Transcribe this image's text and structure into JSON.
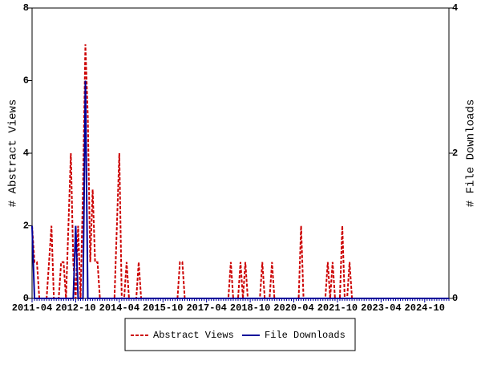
{
  "chart_data": {
    "type": "line",
    "categories": [
      "2011-04",
      null,
      null,
      null,
      null,
      null,
      null,
      null,
      null,
      null,
      null,
      null,
      null,
      null,
      null,
      null,
      null,
      null,
      "2012-10",
      null,
      null,
      null,
      null,
      null,
      null,
      null,
      null,
      null,
      null,
      null,
      null,
      null,
      null,
      null,
      null,
      null,
      "2014-04",
      null,
      null,
      null,
      null,
      null,
      null,
      null,
      null,
      null,
      null,
      null,
      null,
      null,
      null,
      null,
      null,
      null,
      "2015-10",
      null,
      null,
      null,
      null,
      null,
      null,
      null,
      null,
      null,
      null,
      null,
      null,
      null,
      null,
      null,
      null,
      null,
      "2017-04",
      null,
      null,
      null,
      null,
      null,
      null,
      null,
      null,
      null,
      null,
      null,
      null,
      null,
      null,
      null,
      null,
      null,
      "2018-10",
      null,
      null,
      null,
      null,
      null,
      null,
      null,
      null,
      null,
      null,
      null,
      null,
      null,
      null,
      null,
      null,
      null,
      "2020-04",
      null,
      null,
      null,
      null,
      null,
      null,
      null,
      null,
      null,
      null,
      null,
      null,
      null,
      null,
      null,
      null,
      null,
      "2021-10",
      null,
      null,
      null,
      null,
      null,
      null,
      null,
      null,
      null,
      null,
      null,
      null,
      null,
      null,
      null,
      null,
      null,
      "2023-04",
      null,
      null,
      null,
      null,
      null,
      null,
      null,
      null,
      null,
      null,
      null,
      null,
      null,
      null,
      null,
      null,
      null,
      "2024-10",
      null,
      null,
      null,
      null,
      null,
      null,
      null,
      null,
      null,
      null
    ],
    "series": [
      {
        "name": "Abstract Views",
        "color": "#cc0000",
        "dashed": true,
        "values": [
          2,
          1,
          1,
          0,
          0,
          0,
          0,
          1,
          2,
          0,
          0,
          0,
          1,
          1,
          0,
          2,
          4,
          1,
          0,
          2,
          0,
          3,
          7,
          5,
          1,
          3,
          1,
          1,
          0,
          0,
          0,
          0,
          0,
          0,
          0,
          2,
          4,
          0,
          0,
          1,
          0,
          0,
          0,
          0,
          1,
          0,
          0,
          0,
          0,
          0,
          0,
          0,
          0,
          0,
          0,
          0,
          0,
          0,
          0,
          0,
          0,
          1,
          1,
          0,
          0,
          0,
          0,
          0,
          0,
          0,
          0,
          0,
          0,
          0,
          0,
          0,
          0,
          0,
          0,
          0,
          0,
          0,
          1,
          0,
          0,
          0,
          1,
          0,
          1,
          0,
          0,
          0,
          0,
          0,
          0,
          1,
          0,
          0,
          0,
          1,
          0,
          0,
          0,
          0,
          0,
          0,
          0,
          0,
          0,
          0,
          0,
          2,
          0,
          0,
          0,
          0,
          0,
          0,
          0,
          0,
          0,
          0,
          1,
          0,
          1,
          0,
          0,
          0,
          2,
          0,
          0,
          1,
          0,
          0,
          0,
          0,
          0,
          0,
          0,
          0,
          0,
          0,
          0,
          0,
          0,
          0,
          0,
          0,
          0,
          0,
          0,
          0,
          0,
          0,
          0,
          0,
          0,
          0,
          0,
          0,
          0,
          0,
          0,
          0,
          0,
          0,
          0,
          0,
          0,
          0,
          0,
          0,
          0
        ]
      },
      {
        "name": "File Downloads",
        "color": "#000099",
        "dashed": false,
        "axis": "y2",
        "values": [
          1,
          0,
          0,
          0,
          0,
          0,
          0,
          0,
          0,
          0,
          0,
          0,
          0,
          0,
          0,
          0,
          0,
          0,
          1,
          0,
          0,
          0,
          3,
          0,
          0,
          0,
          0,
          0,
          0,
          0,
          0,
          0,
          0,
          0,
          0,
          0,
          0,
          0,
          0,
          0,
          0,
          0,
          0,
          0,
          0,
          0,
          0,
          0,
          0,
          0,
          0,
          0,
          0,
          0,
          0,
          0,
          0,
          0,
          0,
          0,
          0,
          0,
          0,
          0,
          0,
          0,
          0,
          0,
          0,
          0,
          0,
          0,
          0,
          0,
          0,
          0,
          0,
          0,
          0,
          0,
          0,
          0,
          0,
          0,
          0,
          0,
          0,
          0,
          0,
          0,
          0,
          0,
          0,
          0,
          0,
          0,
          0,
          0,
          0,
          0,
          0,
          0,
          0,
          0,
          0,
          0,
          0,
          0,
          0,
          0,
          0,
          0,
          0,
          0,
          0,
          0,
          0,
          0,
          0,
          0,
          0,
          0,
          0,
          0,
          0,
          0,
          0,
          0,
          0,
          0,
          0,
          0,
          0,
          0,
          0,
          0,
          0,
          0,
          0,
          0,
          0,
          0,
          0,
          0,
          0,
          0,
          0,
          0,
          0,
          0,
          0,
          0,
          0,
          0,
          0,
          0,
          0,
          0,
          0,
          0,
          0,
          0,
          0,
          0,
          0,
          0,
          0,
          0,
          0,
          0,
          0,
          0,
          0
        ]
      }
    ],
    "ylabel": "# Abstract Views",
    "y2label": "# File Downloads",
    "ylim": [
      0,
      8
    ],
    "yticks": [
      0,
      2,
      4,
      6,
      8
    ],
    "y2lim": [
      0,
      4
    ],
    "y2ticks": [
      0,
      2,
      4
    ],
    "legend": "bottom"
  }
}
